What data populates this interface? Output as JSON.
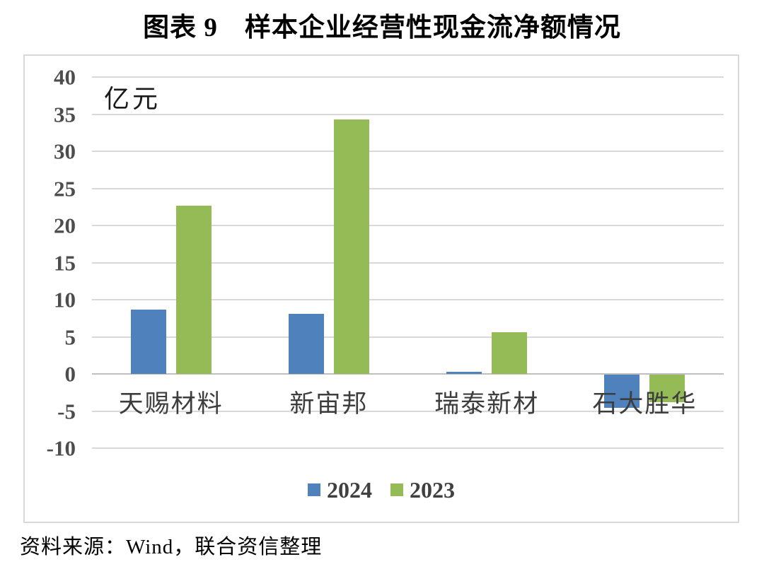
{
  "title": "图表 9　样本企业经营性现金流净额情况",
  "source": "资料来源：Wind，联合资信整理",
  "chart_data": {
    "type": "bar",
    "title": "图表 9　样本企业经营性现金流净额情况",
    "unit_label": "亿元",
    "categories": [
      "天赐材料",
      "新宙邦",
      "瑞泰新材",
      "石大胜华"
    ],
    "series": [
      {
        "name": "2024",
        "color": "#4F81BD",
        "values": [
          8.7,
          8.1,
          0.3,
          -4.5
        ]
      },
      {
        "name": "2023",
        "color": "#94BB55",
        "values": [
          22.7,
          34.3,
          5.6,
          -3.7
        ]
      }
    ],
    "ylabel": "亿元",
    "ylim": [
      -10,
      40
    ],
    "ytick_step": 5,
    "grid": "horizontal",
    "legend_position": "bottom",
    "colors": {
      "series_2024": "#4F81BD",
      "series_2023": "#94BB55",
      "gridline": "#d9d9d9",
      "axis_text": "#4d4d4d",
      "category_text": "#3d3d3d"
    }
  }
}
